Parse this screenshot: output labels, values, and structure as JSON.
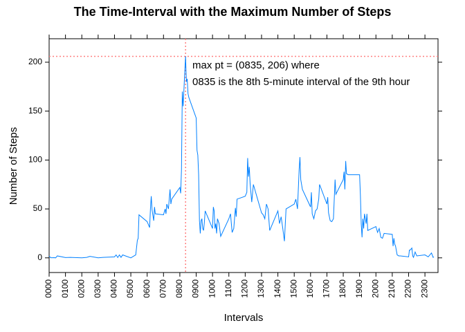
{
  "chart_data": {
    "type": "line",
    "title": "The Time-Interval with the Maximum Number of Steps",
    "xlabel": "Intervals",
    "ylabel": "Number of Steps",
    "annotations": [
      "max pt = (0835, 206) where",
      "0835 is the 8th 5-minute interval of the 9th hour"
    ],
    "vline": 835,
    "hline": 206,
    "ref_color": "#ff7f7f",
    "color": "#0080ff",
    "x": [
      0,
      10,
      20,
      30,
      40,
      50,
      100,
      130,
      200,
      230,
      250,
      300,
      330,
      400,
      410,
      420,
      430,
      440,
      450,
      500,
      520,
      530,
      540,
      545,
      550,
      600,
      615,
      620,
      625,
      630,
      640,
      645,
      650,
      700,
      710,
      715,
      720,
      730,
      740,
      745,
      750,
      800,
      805,
      810,
      815,
      820,
      825,
      830,
      835,
      840,
      845,
      850,
      855,
      900,
      905,
      910,
      915,
      920,
      925,
      930,
      935,
      940,
      945,
      950,
      955,
      1000,
      1005,
      1010,
      1015,
      1020,
      1025,
      1030,
      1040,
      1050,
      1100,
      1110,
      1120,
      1130,
      1140,
      1145,
      1150,
      1200,
      1210,
      1215,
      1220,
      1225,
      1230,
      1240,
      1250,
      1300,
      1310,
      1320,
      1330,
      1340,
      1350,
      1400,
      1410,
      1420,
      1430,
      1440,
      1450,
      1500,
      1510,
      1520,
      1530,
      1535,
      1540,
      1550,
      1600,
      1605,
      1610,
      1620,
      1630,
      1640,
      1650,
      1655,
      1700,
      1705,
      1710,
      1720,
      1730,
      1740,
      1750,
      1755,
      1800,
      1805,
      1810,
      1815,
      1820,
      1830,
      1900,
      1905,
      1910,
      1915,
      1920,
      1925,
      1930,
      1940,
      1945,
      1950,
      2000,
      2010,
      2020,
      2030,
      2040,
      2050,
      2100,
      2105,
      2110,
      2115,
      2120,
      2130,
      2140,
      2150,
      2200,
      2205,
      2210,
      2220,
      2225,
      2230,
      2240,
      2245,
      2250,
      2300,
      2310,
      2320,
      2330,
      2340,
      2350,
      2355
    ],
    "values": [
      1.7,
      0.1,
      0.1,
      0.2,
      0,
      2,
      0.3,
      0.5,
      0,
      0.5,
      1.5,
      0,
      0.5,
      1,
      3,
      0.3,
      3,
      0.5,
      3,
      0,
      2,
      3,
      18,
      20,
      44,
      37,
      31,
      50,
      63,
      49,
      38,
      52,
      45,
      44,
      50,
      45,
      55,
      50,
      70,
      55,
      60,
      72,
      66,
      90,
      170,
      155,
      172,
      190,
      206,
      180,
      183,
      168,
      164,
      143,
      110,
      105,
      85,
      38,
      25,
      38,
      40,
      30,
      28,
      36,
      48,
      30,
      52,
      48,
      30,
      35,
      25,
      40,
      35,
      22,
      40,
      45,
      26,
      30,
      51,
      42,
      60,
      63,
      67,
      102,
      83,
      93,
      76,
      57,
      75,
      46,
      44,
      40,
      55,
      50,
      28,
      48,
      35,
      42,
      30,
      17,
      50,
      55,
      60,
      50,
      90,
      103,
      80,
      70,
      52,
      67,
      45,
      40,
      48,
      50,
      60,
      75,
      55,
      62,
      46,
      38,
      37,
      40,
      80,
      65,
      80,
      88,
      70,
      99,
      86,
      85,
      85,
      64,
      35,
      21,
      40,
      30,
      45,
      35,
      45,
      28,
      32,
      26,
      30,
      21,
      20,
      25,
      24,
      12,
      20,
      14,
      12,
      3,
      2,
      2,
      1,
      8,
      8,
      10,
      2,
      0.5,
      6,
      4,
      2,
      3,
      2,
      1,
      3,
      5,
      0.5,
      1
    ],
    "xlim": [
      0,
      2380
    ],
    "ylim": [
      -15,
      224
    ],
    "xticks": [
      {
        "value": 0,
        "label": "0000"
      },
      {
        "value": 100,
        "label": "0100"
      },
      {
        "value": 200,
        "label": "0200"
      },
      {
        "value": 300,
        "label": "0300"
      },
      {
        "value": 400,
        "label": "0400"
      },
      {
        "value": 500,
        "label": "0500"
      },
      {
        "value": 600,
        "label": "0600"
      },
      {
        "value": 700,
        "label": "0700"
      },
      {
        "value": 800,
        "label": "0800"
      },
      {
        "value": 900,
        "label": "0900"
      },
      1000,
      1100,
      1200,
      1300,
      1400,
      1500,
      1600,
      1700,
      1800,
      1900,
      2000,
      2100,
      2200,
      2300
    ],
    "yticks": [
      0,
      50,
      100,
      150,
      200
    ]
  }
}
